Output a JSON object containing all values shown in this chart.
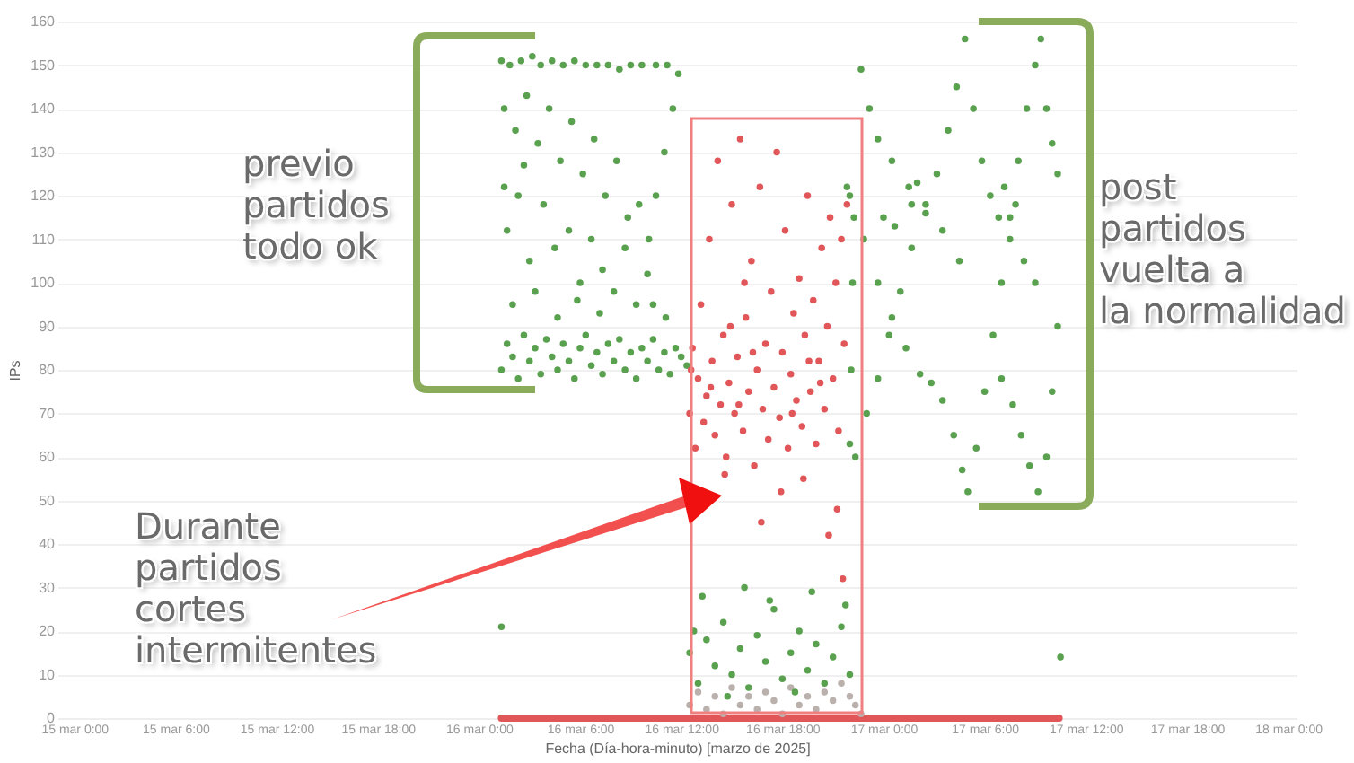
{
  "chart_data": {
    "type": "scatter",
    "xlabel": "Fecha (Día-hora-minuto) [marzo de 2025]",
    "ylabel": "IPs",
    "xlim": [
      "2025-03-14T23:00",
      "2025-03-18T00:30"
    ],
    "xticks": [
      {
        "value": "2025-03-15T00:00",
        "label": "15 mar 0:00"
      },
      {
        "value": "2025-03-15T06:00",
        "label": "15 mar 6:00"
      },
      {
        "value": "2025-03-15T12:00",
        "label": "15 mar 12:00"
      },
      {
        "value": "2025-03-15T18:00",
        "label": "15 mar 18:00"
      },
      {
        "value": "2025-03-16T00:00",
        "label": "16 mar 0:00"
      },
      {
        "value": "2025-03-16T06:00",
        "label": "16 mar 6:00"
      },
      {
        "value": "2025-03-16T12:00",
        "label": "16 mar 12:00"
      },
      {
        "value": "2025-03-16T18:00",
        "label": "16 mar 18:00"
      },
      {
        "value": "2025-03-17T00:00",
        "label": "17 mar 0:00"
      },
      {
        "value": "2025-03-17T06:00",
        "label": "17 mar 6:00"
      },
      {
        "value": "2025-03-17T12:00",
        "label": "17 mar 12:00"
      },
      {
        "value": "2025-03-17T18:00",
        "label": "17 mar 18:00"
      },
      {
        "value": "2025-03-18T00:00",
        "label": "18 mar 0:00"
      }
    ],
    "ylim": [
      0,
      160
    ],
    "yticks": [
      0,
      10,
      20,
      30,
      40,
      50,
      60,
      70,
      80,
      90,
      100,
      110,
      120,
      130,
      140,
      150,
      160
    ],
    "grid": "y",
    "legend": false,
    "marker": "circle",
    "annotations": [
      "previo\npartidos\ntodo ok",
      "post\npartidos\nvuelta a\nla normalidad",
      "Durante\npartidos\ncortes\nintermitentes"
    ],
    "series": [
      {
        "type": "line",
        "marker": "none",
        "color": "#e15759",
        "x": [
          "2025-03-16T01:20",
          "2025-03-17T10:25"
        ],
        "values": [
          0,
          0
        ]
      },
      {
        "color": "#bab0ac",
        "x": [
          "2025-03-16T12:30",
          "2025-03-16T13:00",
          "2025-03-16T13:30",
          "2025-03-16T14:00",
          "2025-03-16T14:30",
          "2025-03-16T15:00",
          "2025-03-16T15:30",
          "2025-03-16T16:00",
          "2025-03-16T16:30",
          "2025-03-16T17:00",
          "2025-03-16T17:30",
          "2025-03-16T18:00",
          "2025-03-16T18:30",
          "2025-03-16T19:00",
          "2025-03-16T19:30",
          "2025-03-16T20:00",
          "2025-03-16T20:30",
          "2025-03-16T21:00",
          "2025-03-16T21:30",
          "2025-03-16T22:00",
          "2025-03-16T22:20",
          "2025-03-16T22:40"
        ],
        "values": [
          3,
          6,
          2,
          5,
          1,
          7,
          3,
          5,
          2,
          6,
          4,
          1,
          7,
          3,
          5,
          2,
          6,
          4,
          8,
          5,
          3,
          1
        ]
      },
      {
        "color": "#59a14f",
        "x": [
          "2025-03-16T01:20",
          "2025-03-16T01:50",
          "2025-03-16T02:30",
          "2025-03-16T03:10",
          "2025-03-16T03:40",
          "2025-03-16T04:20",
          "2025-03-16T05:00",
          "2025-03-16T05:40",
          "2025-03-16T06:20",
          "2025-03-16T07:00",
          "2025-03-16T07:40",
          "2025-03-16T08:20",
          "2025-03-16T09:00",
          "2025-03-16T09:40",
          "2025-03-16T10:30",
          "2025-03-16T11:10",
          "2025-03-16T01:30",
          "2025-03-16T02:10",
          "2025-03-16T02:50",
          "2025-03-16T03:30",
          "2025-03-16T04:10",
          "2025-03-16T04:50",
          "2025-03-16T05:30",
          "2025-03-16T06:10",
          "2025-03-16T06:50",
          "2025-03-16T07:30",
          "2025-03-16T08:10",
          "2025-03-16T08:50",
          "2025-03-16T09:30",
          "2025-03-16T01:40",
          "2025-03-16T02:20",
          "2025-03-16T03:00",
          "2025-03-16T03:50",
          "2025-03-16T04:30",
          "2025-03-16T05:20",
          "2025-03-16T06:00",
          "2025-03-16T06:40",
          "2025-03-16T07:20",
          "2025-03-16T08:00",
          "2025-03-16T08:40",
          "2025-03-16T09:20",
          "2025-03-16T10:00",
          "2025-03-16T02:00",
          "2025-03-16T03:20",
          "2025-03-16T04:40",
          "2025-03-16T05:50",
          "2025-03-16T07:10",
          "2025-03-16T01:30",
          "2025-03-16T02:40",
          "2025-03-16T10:05",
          "2025-03-16T10:30",
          "2025-03-16T11:00",
          "2025-03-16T11:30",
          "2025-03-16T11:50",
          "2025-03-16T10:20",
          "2025-03-16T11:05",
          "2025-03-16T01:20",
          "2025-03-16T01:40",
          "2025-03-16T02:00",
          "2025-03-16T02:20",
          "2025-03-16T02:40",
          "2025-03-16T03:00",
          "2025-03-16T03:20",
          "2025-03-16T03:40",
          "2025-03-16T04:00",
          "2025-03-16T04:20",
          "2025-03-16T04:40",
          "2025-03-16T05:00",
          "2025-03-16T05:20",
          "2025-03-16T05:40",
          "2025-03-16T06:00",
          "2025-03-16T06:20",
          "2025-03-16T06:40",
          "2025-03-16T07:00",
          "2025-03-16T07:20",
          "2025-03-16T07:40",
          "2025-03-16T08:00",
          "2025-03-16T08:20",
          "2025-03-16T08:40",
          "2025-03-16T09:00",
          "2025-03-16T09:20",
          "2025-03-16T09:40",
          "2025-03-16T10:00",
          "2025-03-16T10:20",
          "2025-03-16T10:40",
          "2025-03-16T11:00",
          "2025-03-16T11:20",
          "2025-03-16T11:40",
          "2025-03-16T12:00",
          "2025-03-16T12:20",
          "2025-03-16T01:20",
          "2025-03-16T12:30",
          "2025-03-16T13:00",
          "2025-03-16T13:30",
          "2025-03-16T14:00",
          "2025-03-16T14:30",
          "2025-03-16T15:00",
          "2025-03-16T15:30",
          "2025-03-16T16:00",
          "2025-03-16T16:30",
          "2025-03-16T17:00",
          "2025-03-16T17:30",
          "2025-03-16T18:00",
          "2025-03-16T18:30",
          "2025-03-16T19:00",
          "2025-03-16T19:30",
          "2025-03-16T20:00",
          "2025-03-16T20:30",
          "2025-03-16T21:00",
          "2025-03-16T21:30",
          "2025-03-16T22:00",
          "2025-03-16T13:15",
          "2025-03-16T15:45",
          "2025-03-16T17:15",
          "2025-03-16T19:45",
          "2025-03-16T14:45",
          "2025-03-16T18:45",
          "2025-03-16T12:45",
          "2025-03-16T21:45",
          "2025-03-16T22:00",
          "2025-03-16T22:05",
          "2025-03-16T22:10",
          "2025-03-16T22:15",
          "2025-03-16T21:50",
          "2025-03-16T22:40",
          "2025-03-16T23:10",
          "2025-03-16T23:40",
          "2025-03-17T00:30",
          "2025-03-17T01:30",
          "2025-03-17T02:30",
          "2025-03-17T03:30",
          "2025-03-17T04:30",
          "2025-03-16T22:20",
          "2025-03-16T23:00",
          "2025-03-16T23:40",
          "2025-03-17T00:20",
          "2025-03-17T01:00",
          "2025-03-17T01:40",
          "2025-03-17T02:30",
          "2025-03-17T03:10",
          "2025-03-17T03:50",
          "2025-03-17T04:20",
          "2025-03-17T04:50",
          "2025-03-16T22:00",
          "2025-03-16T22:50",
          "2025-03-16T23:40",
          "2025-03-17T00:30",
          "2025-03-17T01:20",
          "2025-03-17T02:10",
          "2025-03-17T02:50",
          "2025-03-17T03:30",
          "2025-03-17T04:10",
          "2025-03-17T04:40",
          "2025-03-17T05:00",
          "2025-03-17T05:30",
          "2025-03-17T06:00",
          "2025-03-17T06:30",
          "2025-03-17T07:00",
          "2025-03-17T07:30",
          "2025-03-17T08:00",
          "2025-03-17T08:30",
          "2025-03-17T09:00",
          "2025-03-17T09:20",
          "2025-03-17T05:20",
          "2025-03-17T05:50",
          "2025-03-17T06:20",
          "2025-03-17T06:50",
          "2025-03-17T07:30",
          "2025-03-17T08:20",
          "2025-03-17T09:00",
          "2025-03-17T07:00",
          "2025-03-17T07:40",
          "2025-03-17T08:10",
          "2025-03-17T08:40",
          "2025-03-17T09:10",
          "2025-03-17T09:40",
          "2025-03-17T10:00",
          "2025-03-17T10:20",
          "2025-03-17T09:40",
          "2025-03-17T10:00",
          "2025-03-17T10:20",
          "2025-03-17T00:00",
          "2025-03-17T00:40",
          "2025-03-17T01:40",
          "2025-03-17T02:00",
          "2025-03-17T07:10",
          "2025-03-17T07:50",
          "2025-03-17T10:30"
        ],
        "values": [
          151,
          150,
          151,
          152,
          150,
          151,
          150,
          151,
          150,
          150,
          150,
          149,
          150,
          150,
          150,
          150,
          140,
          135,
          143,
          132,
          140,
          128,
          137,
          125,
          133,
          120,
          128,
          115,
          118,
          112,
          120,
          105,
          118,
          108,
          112,
          100,
          110,
          103,
          98,
          108,
          95,
          102,
          95,
          98,
          92,
          96,
          93,
          122,
          127,
          110,
          120,
          130,
          140,
          148,
          95,
          92,
          80,
          86,
          83,
          78,
          88,
          82,
          85,
          79,
          87,
          83,
          80,
          86,
          82,
          78,
          85,
          88,
          81,
          84,
          79,
          86,
          82,
          87,
          80,
          84,
          78,
          85,
          82,
          87,
          80,
          84,
          79,
          85,
          83,
          81,
          21,
          15,
          8,
          18,
          12,
          22,
          10,
          16,
          7,
          19,
          13,
          25,
          9,
          15,
          20,
          11,
          17,
          8,
          14,
          21,
          10,
          28,
          30,
          27,
          29,
          5,
          6,
          20,
          26,
          63,
          80,
          100,
          115,
          122,
          149,
          140,
          133,
          128,
          122,
          118,
          112,
          105,
          60,
          70,
          78,
          88,
          98,
          108,
          116,
          125,
          135,
          145,
          156,
          120,
          110,
          100,
          92,
          85,
          79,
          77,
          73,
          65,
          57,
          52,
          62,
          75,
          88,
          100,
          115,
          128,
          140,
          150,
          156,
          140,
          128,
          120,
          115,
          110,
          105,
          100,
          78,
          72,
          65,
          58,
          52,
          60,
          75,
          90,
          140,
          132,
          125,
          115,
          113,
          118,
          123,
          122,
          118,
          14
        ]
      },
      {
        "color": "#e15759",
        "x": [
          "2025-03-16T12:30",
          "2025-03-16T12:40",
          "2025-03-16T12:50",
          "2025-03-16T13:00",
          "2025-03-16T13:10",
          "2025-03-16T13:20",
          "2025-03-16T13:30",
          "2025-03-16T13:40",
          "2025-03-16T13:50",
          "2025-03-16T14:00",
          "2025-03-16T14:10",
          "2025-03-16T14:20",
          "2025-03-16T14:30",
          "2025-03-16T14:40",
          "2025-03-16T14:50",
          "2025-03-16T15:00",
          "2025-03-16T15:10",
          "2025-03-16T15:20",
          "2025-03-16T15:30",
          "2025-03-16T15:40",
          "2025-03-16T15:50",
          "2025-03-16T16:00",
          "2025-03-16T16:10",
          "2025-03-16T16:20",
          "2025-03-16T16:30",
          "2025-03-16T16:40",
          "2025-03-16T16:50",
          "2025-03-16T17:00",
          "2025-03-16T17:10",
          "2025-03-16T17:20",
          "2025-03-16T17:30",
          "2025-03-16T17:40",
          "2025-03-16T17:50",
          "2025-03-16T18:00",
          "2025-03-16T18:10",
          "2025-03-16T18:20",
          "2025-03-16T18:30",
          "2025-03-16T18:40",
          "2025-03-16T18:50",
          "2025-03-16T19:00",
          "2025-03-16T19:10",
          "2025-03-16T19:20",
          "2025-03-16T19:30",
          "2025-03-16T19:40",
          "2025-03-16T19:50",
          "2025-03-16T20:00",
          "2025-03-16T20:10",
          "2025-03-16T20:20",
          "2025-03-16T20:30",
          "2025-03-16T20:40",
          "2025-03-16T20:50",
          "2025-03-16T21:00",
          "2025-03-16T21:10",
          "2025-03-16T21:20",
          "2025-03-16T21:30",
          "2025-03-16T21:40",
          "2025-03-16T21:50",
          "2025-03-16T16:45",
          "2025-03-16T19:15",
          "2025-03-16T20:45",
          "2025-03-16T21:15",
          "2025-03-16T21:35",
          "2025-03-16T14:35",
          "2025-03-16T17:55",
          "2025-03-16T12:35",
          "2025-03-16T13:45",
          "2025-03-16T15:25",
          "2025-03-16T16:15",
          "2025-03-16T18:35",
          "2025-03-16T19:35",
          "2025-03-16T20:15",
          "2025-03-16T15:45",
          "2025-03-16T14:55"
        ],
        "values": [
          70,
          85,
          62,
          78,
          95,
          68,
          74,
          110,
          82,
          65,
          128,
          72,
          88,
          60,
          77,
          118,
          70,
          83,
          133,
          66,
          92,
          75,
          105,
          58,
          80,
          122,
          71,
          86,
          64,
          98,
          76,
          130,
          69,
          84,
          112,
          62,
          79,
          93,
          73,
          101,
          67,
          88,
          120,
          75,
          96,
          63,
          82,
          108,
          71,
          90,
          115,
          78,
          100,
          66,
          110,
          86,
          118,
          45,
          55,
          42,
          48,
          32,
          56,
          52,
          80,
          76,
          72,
          84,
          70,
          82,
          77,
          100,
          90
        ]
      }
    ]
  }
}
